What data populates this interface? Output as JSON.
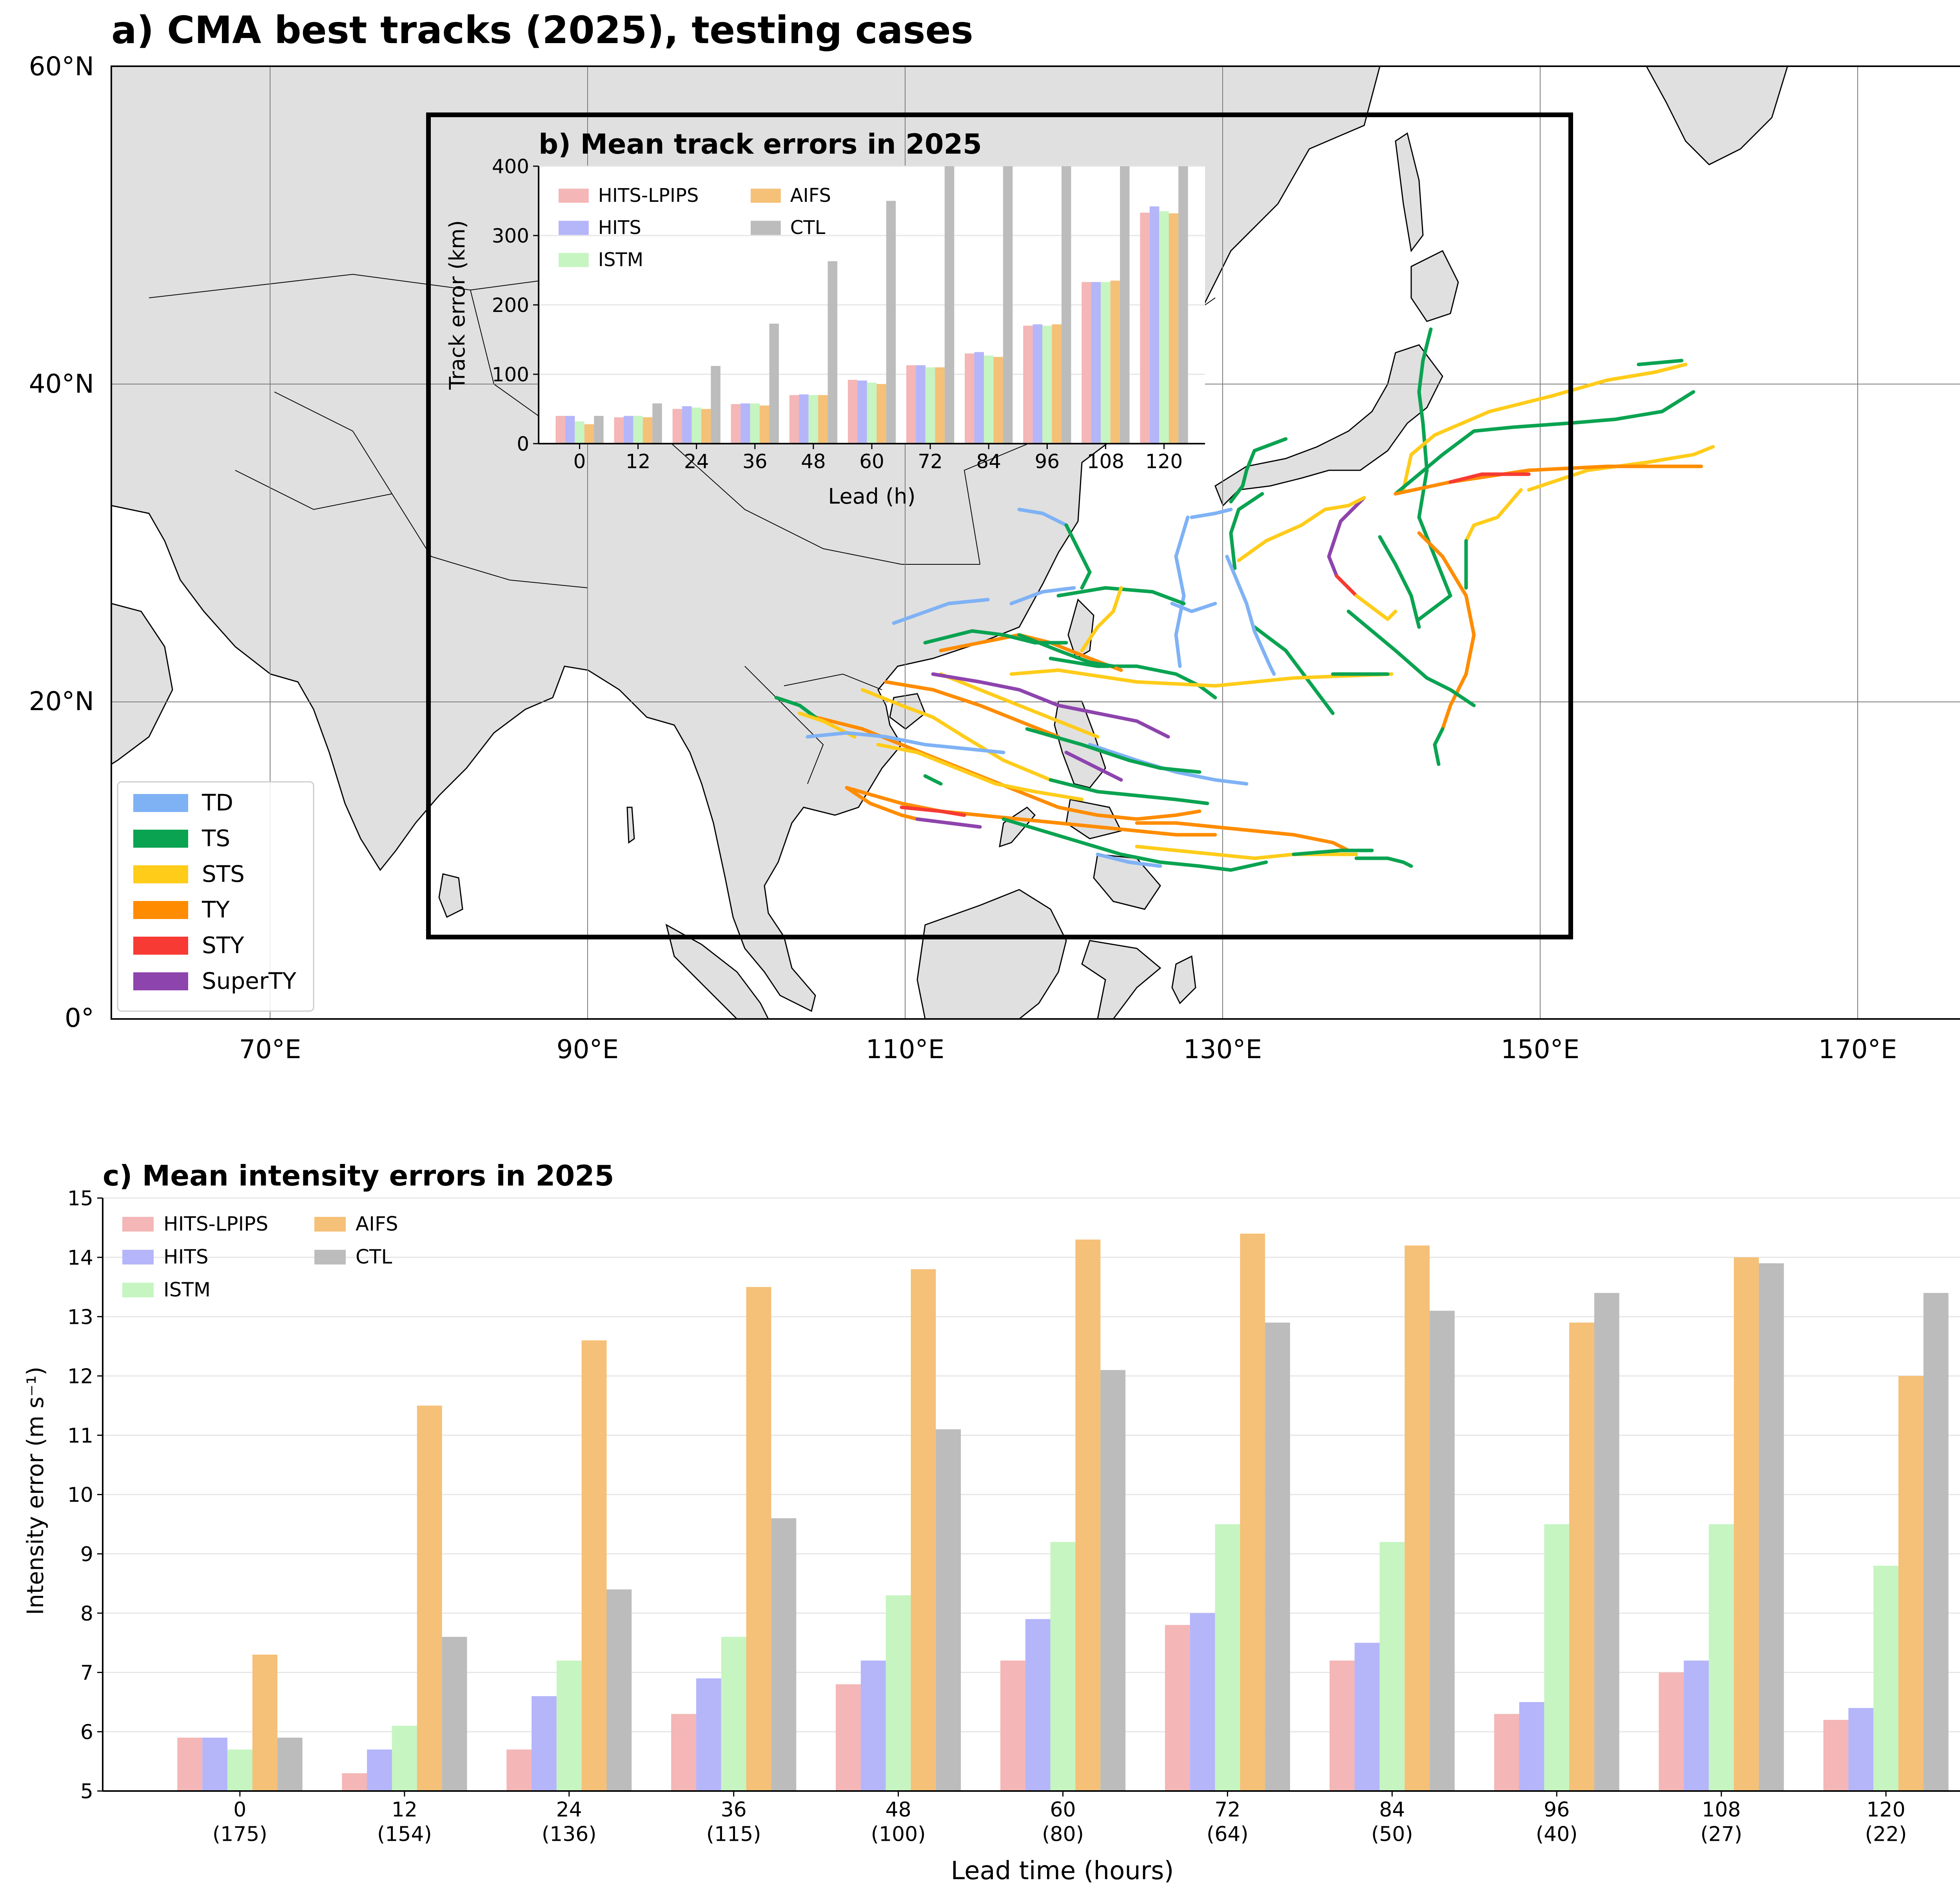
{
  "panel_a": {
    "title": "a) CMA best tracks (2025), testing cases",
    "lat_ticks": [
      "0°",
      "20°N",
      "40°N",
      "60°N"
    ],
    "lon_ticks": [
      "70°E",
      "90°E",
      "110°E",
      "130°E",
      "150°E",
      "170°E"
    ],
    "legend": [
      {
        "label": "TD",
        "color": "#7fb2f5"
      },
      {
        "label": "TS",
        "color": "#0aa351"
      },
      {
        "label": "STS",
        "color": "#ffcc1a"
      },
      {
        "label": "TY",
        "color": "#ff8c00"
      },
      {
        "label": "STY",
        "color": "#f73a33"
      },
      {
        "label": "SuperTY",
        "color": "#8e44ad"
      }
    ]
  },
  "chart_data": [
    {
      "type": "bar",
      "panel": "b",
      "title": "b) Mean track errors in 2025",
      "xlabel": "Lead (h)",
      "ylabel": "Track error (km)",
      "ylim": [
        0,
        400
      ],
      "yticks": [
        0,
        100,
        200,
        300,
        400
      ],
      "categories": [
        "0",
        "12",
        "24",
        "36",
        "48",
        "60",
        "72",
        "84",
        "96",
        "108",
        "120"
      ],
      "series": [
        {
          "name": "HITS-LPIPS",
          "color": "#f4b6b6",
          "values": [
            40,
            38,
            50,
            57,
            70,
            92,
            113,
            130,
            170,
            233,
            333
          ]
        },
        {
          "name": "HITS",
          "color": "#b5b5fa",
          "values": [
            40,
            40,
            54,
            58,
            71,
            91,
            113,
            132,
            172,
            233,
            342
          ]
        },
        {
          "name": "ISTM",
          "color": "#c6f5c1",
          "values": [
            32,
            40,
            52,
            58,
            70,
            88,
            110,
            127,
            170,
            233,
            335
          ]
        },
        {
          "name": "AIFS",
          "color": "#f5c077",
          "values": [
            28,
            38,
            50,
            55,
            70,
            86,
            110,
            125,
            172,
            235,
            332
          ]
        },
        {
          "name": "CTL",
          "color": "#bcbcbc",
          "values": [
            40,
            58,
            112,
            173,
            263,
            350,
            400,
            400,
            400,
            400,
            400
          ]
        }
      ],
      "legend_placement": "top-left",
      "grid": "y"
    },
    {
      "type": "bar",
      "panel": "c",
      "title": "c) Mean intensity errors in 2025",
      "xlabel": "Lead time (hours)",
      "ylabel": "Intensity error (m s⁻¹)",
      "ylim": [
        5,
        15
      ],
      "yticks": [
        5,
        6,
        7,
        8,
        9,
        10,
        11,
        12,
        13,
        14,
        15
      ],
      "categories": [
        "0",
        "12",
        "24",
        "36",
        "48",
        "60",
        "72",
        "84",
        "96",
        "108",
        "120"
      ],
      "case_counts": [
        "(175)",
        "(154)",
        "(136)",
        "(115)",
        "(100)",
        "(80)",
        "(64)",
        "(50)",
        "(40)",
        "(27)",
        "(22)"
      ],
      "series": [
        {
          "name": "HITS-LPIPS",
          "color": "#f4b6b6",
          "values": [
            5.9,
            5.3,
            5.7,
            6.3,
            6.8,
            7.2,
            7.8,
            7.2,
            6.3,
            7.0,
            6.2
          ]
        },
        {
          "name": "HITS",
          "color": "#b5b5fa",
          "values": [
            5.9,
            5.7,
            6.6,
            6.9,
            7.2,
            7.9,
            8.0,
            7.5,
            6.5,
            7.2,
            6.4
          ]
        },
        {
          "name": "ISTM",
          "color": "#c6f5c1",
          "values": [
            5.7,
            6.1,
            7.2,
            7.6,
            8.3,
            9.2,
            9.5,
            9.2,
            9.5,
            9.5,
            8.8
          ]
        },
        {
          "name": "AIFS",
          "color": "#f5c077",
          "values": [
            7.3,
            11.5,
            12.6,
            13.5,
            13.8,
            14.3,
            14.4,
            14.2,
            12.9,
            14.0,
            12.0
          ]
        },
        {
          "name": "CTL",
          "color": "#bcbcbc",
          "values": [
            5.9,
            7.6,
            8.4,
            9.6,
            11.1,
            12.1,
            12.9,
            13.1,
            13.4,
            13.9,
            13.4
          ]
        }
      ],
      "legend_placement": "top-left",
      "grid": "y"
    }
  ]
}
